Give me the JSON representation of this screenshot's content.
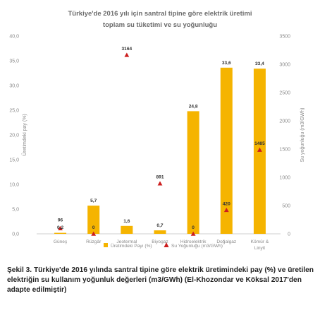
{
  "chart_data": {
    "type": "bar",
    "title": "Türkiye'de 2016 yılı için santral tipine göre elektrik üretimi",
    "subtitle": "toplam su tüketimi ve su yoğunluğu",
    "categories": [
      "Güneş",
      "Rüzgâr",
      "Jeotermal",
      "Biyogaz",
      "Hidroelektrik",
      "Doğalgaz",
      "Kömür & Linyit"
    ],
    "series": [
      {
        "name": "Üretimdeki Payı (%)",
        "type": "bar",
        "axis": "left",
        "color": "#f5b400",
        "values": [
          0.2,
          5.7,
          1.6,
          0.7,
          24.8,
          33.6,
          33.4
        ],
        "labels": [
          "0,2",
          "5,7",
          "1,6",
          "0,7",
          "24,8",
          "33,6",
          "33,4"
        ]
      },
      {
        "name": "Su Yoğunluğu (m3/GWh)",
        "type": "scatter",
        "axis": "right",
        "color": "#cc1e1e",
        "values": [
          96,
          0,
          3164,
          891,
          0,
          420,
          1485
        ],
        "labels": [
          "96",
          "0",
          "3164",
          "891",
          "0",
          "420",
          "1485"
        ]
      }
    ],
    "ylabel": "Üretimdeki pay (%)",
    "y2label": "Su yoğunluğu (m3/GWh)",
    "ylim": [
      0,
      40
    ],
    "y2lim": [
      0,
      3500
    ],
    "yticks": [
      "0,0",
      "5,0",
      "10,0",
      "15,0",
      "20,0",
      "25,0",
      "30,0",
      "35,0",
      "40,0"
    ],
    "y2ticks": [
      "0",
      "500",
      "1000",
      "1500",
      "2000",
      "2500",
      "3000",
      "3500"
    ],
    "legend": "bottom"
  },
  "caption": "Şekil 3. Türkiye'de 2016 yılında santral tipine göre elektrik üretimindeki pay (%) ve üretilen elektriğin su kullanım yoğunluk değerleri (m3/GWh) (El-Khozondar ve Köksal 2017'den adapte edilmiştir)"
}
